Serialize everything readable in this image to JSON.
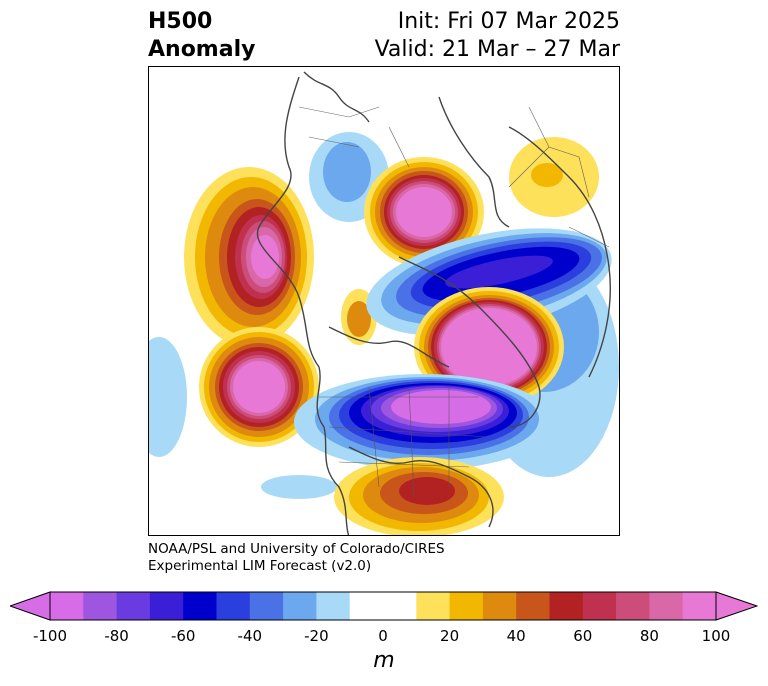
{
  "header": {
    "title_line1": "H500",
    "title_line2": "Anomaly",
    "init_text": "Init: Fri 07 Mar 2025",
    "valid_text": "Valid: 21 Mar – 27 Mar"
  },
  "credit": {
    "line1": "NOAA/PSL and University of Colorado/CIRES",
    "line2": "Experimental LIM Forecast (v2.0)"
  },
  "colorbar": {
    "unit": "m",
    "tick_labels": [
      "-100",
      "-80",
      "-60",
      "-40",
      "-20",
      "0",
      "20",
      "40",
      "60",
      "80",
      "100"
    ],
    "bins": [
      {
        "from": -100,
        "to": -90,
        "color": "#d66de6"
      },
      {
        "from": -90,
        "to": -80,
        "color": "#9e55e0"
      },
      {
        "from": -80,
        "to": -70,
        "color": "#6a3be0"
      },
      {
        "from": -70,
        "to": -60,
        "color": "#3a1fd6"
      },
      {
        "from": -60,
        "to": -50,
        "color": "#0000cc"
      },
      {
        "from": -50,
        "to": -40,
        "color": "#2a3fde"
      },
      {
        "from": -40,
        "to": -30,
        "color": "#4a72e6"
      },
      {
        "from": -30,
        "to": -20,
        "color": "#6ba8ee"
      },
      {
        "from": -20,
        "to": -10,
        "color": "#a8daf8"
      },
      {
        "from": -10,
        "to": 10,
        "color": "#ffffff"
      },
      {
        "from": 10,
        "to": 20,
        "color": "#fde15a"
      },
      {
        "from": 20,
        "to": 30,
        "color": "#f2b700"
      },
      {
        "from": 30,
        "to": 40,
        "color": "#de8a0e"
      },
      {
        "from": 40,
        "to": 50,
        "color": "#c8561a"
      },
      {
        "from": 50,
        "to": 60,
        "color": "#b22222"
      },
      {
        "from": 60,
        "to": 70,
        "color": "#c0304f"
      },
      {
        "from": 70,
        "to": 80,
        "color": "#cc4d7a"
      },
      {
        "from": 80,
        "to": 90,
        "color": "#d968a8"
      },
      {
        "from": 90,
        "to": 100,
        "color": "#e878d6"
      }
    ],
    "extend_low_color": "#d66de6",
    "extend_high_color": "#e878d6"
  }
}
